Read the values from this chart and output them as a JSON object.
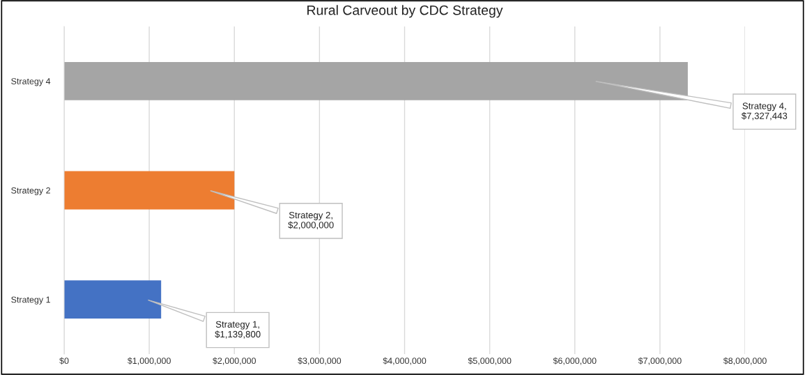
{
  "chart_data": {
    "type": "bar",
    "orientation": "horizontal",
    "title": "Rural Carveout by CDC Strategy",
    "categories": [
      "Strategy 4",
      "Strategy 2",
      "Strategy 1"
    ],
    "values": [
      7327443,
      2000000,
      1139800
    ],
    "colors": [
      "#a5a5a5",
      "#ed7d31",
      "#4472c4"
    ],
    "value_labels": [
      "Strategy 4,\n$7,327,443",
      "Strategy 2,\n$2,000,000",
      "Strategy 1,\n$1,139,800"
    ],
    "xlim": [
      0,
      8000000
    ],
    "xticks": [
      {
        "value": 0,
        "label": "$0"
      },
      {
        "value": 1000000,
        "label": "$1,000,000"
      },
      {
        "value": 2000000,
        "label": "$2,000,000"
      },
      {
        "value": 3000000,
        "label": "$3,000,000"
      },
      {
        "value": 4000000,
        "label": "$4,000,000"
      },
      {
        "value": 5000000,
        "label": "$5,000,000"
      },
      {
        "value": 6000000,
        "label": "$6,000,000"
      },
      {
        "value": 7000000,
        "label": "$7,000,000"
      },
      {
        "value": 8000000,
        "label": "$8,000,000"
      }
    ],
    "grid": "x",
    "legend": false
  }
}
